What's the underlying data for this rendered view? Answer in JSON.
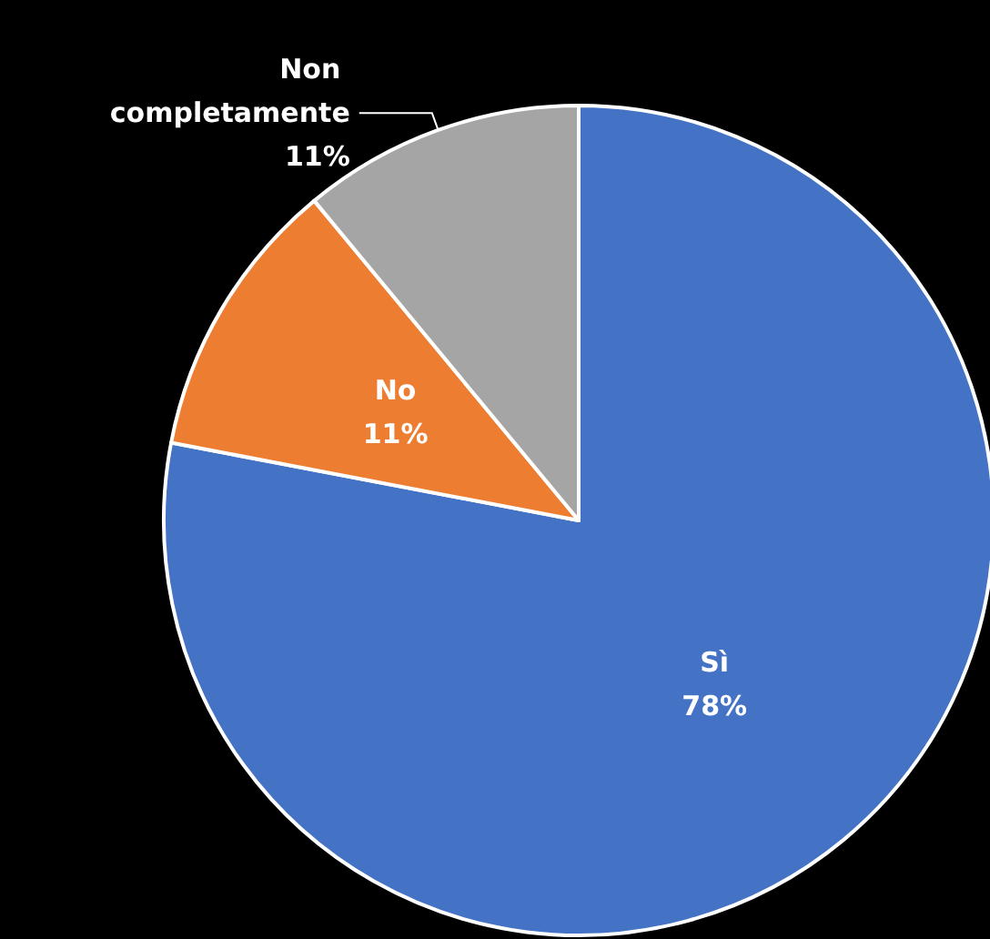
{
  "chart_data": {
    "type": "pie",
    "categories": [
      "Sì",
      "No",
      "Non completamente"
    ],
    "values": [
      78,
      11,
      11
    ],
    "value_labels": [
      "78%",
      "11%",
      "11%"
    ],
    "colors": [
      "#4472c4",
      "#ed7d31",
      "#a5a5a5"
    ]
  }
}
